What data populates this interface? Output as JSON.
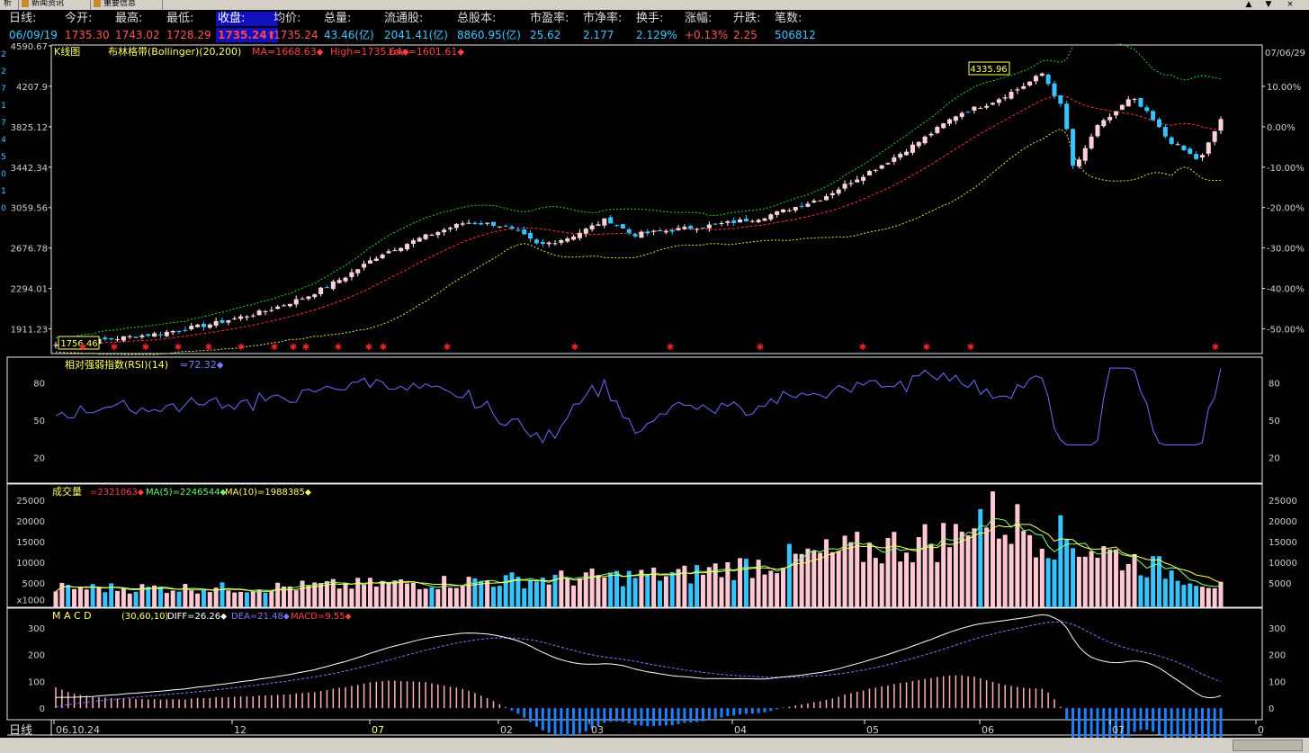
{
  "tabs": [
    {
      "label": "析"
    },
    {
      "label": "新闻资讯"
    },
    {
      "label": "重要信息"
    }
  ],
  "window_buttons": [
    "▲",
    "▼",
    "×"
  ],
  "quote": {
    "labels": [
      "日线:",
      "今开:",
      "最高:",
      "最低:",
      "收盘:",
      "均价:",
      "总量:",
      "流通股:",
      "总股本:",
      "市盈率:",
      "市净率:",
      "换手:",
      "涨幅:",
      "升跌:",
      "笔数:"
    ],
    "values": [
      "06/09/19",
      "1735.30",
      "1743.02",
      "1728.29",
      "1735.24⬆",
      "1735.24",
      "43.46(亿)",
      "2041.41(亿)",
      "8860.95(亿)",
      "25.62",
      "2.177",
      "2.129%",
      "+0.13%",
      "2.25",
      "506812"
    ],
    "colors": [
      "#3ec7ff",
      "#ff5555",
      "#ff5555",
      "#ff5555",
      "#ff4444",
      "#ff5555",
      "#3ec7ff",
      "#3ec7ff",
      "#3ec7ff",
      "#3ec7ff",
      "#3ec7ff",
      "#3ec7ff",
      "#ff5555",
      "#ff5555",
      "#3ec7ff"
    ]
  },
  "left_strip": [
    "2",
    "2",
    "7",
    "1",
    "7",
    "4",
    "5",
    "0",
    "1",
    "0"
  ],
  "kline": {
    "title": "K线图",
    "indicator": "布林格带(Bollinger)(20,200)",
    "ma": "MA=1668.63",
    "high": "High=1735.64",
    "low": "Low=1601.61",
    "date_right": "07/06/29",
    "y_ticks": [
      "4590.67",
      "4207.9",
      "3825.12",
      "3442.34",
      "3059.56",
      "2676.78",
      "2294.01",
      "1911.23"
    ],
    "pct_ticks": [
      "10.00%",
      "0.00%",
      "-10.00%",
      "-20.00%",
      "-30.00%",
      "-40.00%",
      "-50.00%"
    ],
    "max_label": "4335.96",
    "min_label": "1756.46"
  },
  "rsi": {
    "title": "相对强弱指数(RSI)(14)",
    "value": "=72.32",
    "ticks": [
      "80",
      "50",
      "20"
    ]
  },
  "volume": {
    "title": "成交量",
    "value": "=2321063",
    "ma5": "MA(5)=2246544",
    "ma10": "MA(10)=1988385",
    "ticks": [
      "25000",
      "20000",
      "15000",
      "10000",
      "5000",
      "x1000"
    ]
  },
  "macd": {
    "title": "M A C D",
    "params": "(30,60,10)",
    "diff": "DIFF=26.26",
    "dea": "DEA=21.48",
    "macd": "MACD=9.55",
    "ticks": [
      "300",
      "200",
      "100",
      "0"
    ]
  },
  "x_axis": {
    "labels": [
      "06.10.24",
      "12",
      "07",
      "02",
      "03",
      "04",
      "05",
      "06",
      "07",
      "0"
    ]
  },
  "bottom_label": "日线",
  "colors": {
    "up": "#ff9aa8",
    "down": "#36c3ff",
    "ma": "#ff3030",
    "upper": "#24d424",
    "lower": "#e6e640",
    "frame": "#e8e8e8",
    "rsi": "#6e6eff",
    "diff": "#ffffff",
    "dea": "#7a7aff"
  }
}
